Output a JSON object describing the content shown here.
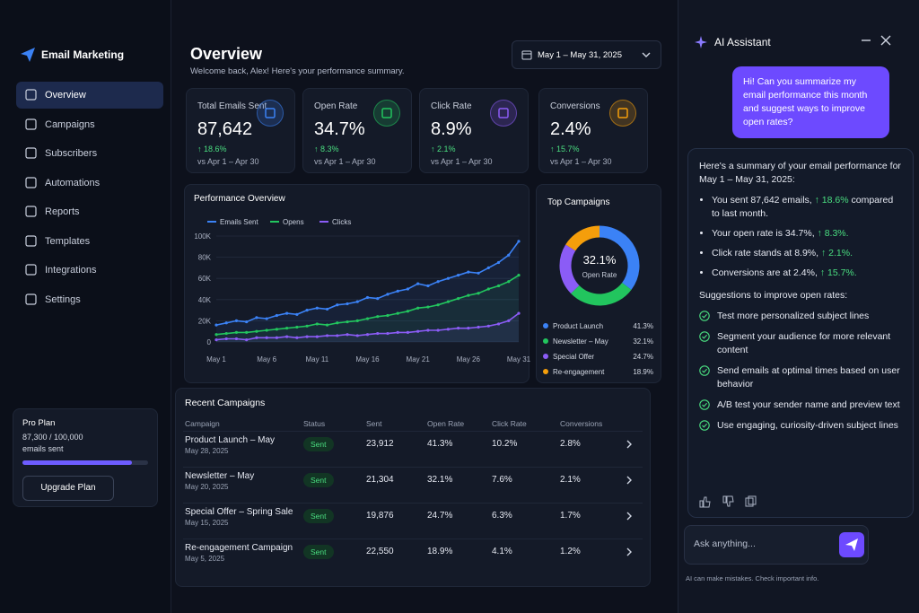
{
  "sidebar": {
    "brand": "Email Marketing",
    "nav": [
      "Overview",
      "Campaigns",
      "Subscribers",
      "Automations",
      "Reports",
      "Templates",
      "Integrations",
      "Settings"
    ],
    "active": 0,
    "plan": {
      "title": "Pro Plan",
      "usage": "87,300 / 100,000",
      "unit": "emails sent",
      "used": 87300,
      "limit": 100000,
      "button": "Upgrade Plan"
    }
  },
  "header": {
    "title": "Overview",
    "subtitle": "Welcome back, Alex! Here's your performance summary.",
    "date_range": "May 1 – May 31, 2025"
  },
  "kpis": [
    {
      "label": "Total Emails Sent",
      "value": "87,642",
      "change": "↑ 18.6%",
      "compare": "vs Apr 1 – Apr 30",
      "color": "#3b82f6"
    },
    {
      "label": "Open Rate",
      "value": "34.7%",
      "change": "↑ 8.3%",
      "compare": "vs Apr 1 – Apr 30",
      "color": "#22c55e"
    },
    {
      "label": "Click Rate",
      "value": "8.9%",
      "change": "↑ 2.1%",
      "compare": "vs Apr 1 – Apr 30",
      "color": "#8b5cf6"
    },
    {
      "label": "Conversions",
      "value": "2.4%",
      "change": "↑ 15.7%",
      "compare": "vs Apr 1 – Apr 30",
      "color": "#f59e0b"
    }
  ],
  "performance_chart": {
    "type": "line",
    "title": "Performance Overview",
    "categories": [
      "May 1",
      null,
      null,
      null,
      null,
      "May 6",
      null,
      null,
      null,
      null,
      "May 11",
      null,
      null,
      null,
      null,
      "May 16",
      null,
      null,
      null,
      null,
      "May 21",
      null,
      null,
      null,
      null,
      "May 26",
      null,
      null,
      null,
      null,
      "May 31"
    ],
    "series": [
      {
        "name": "Emails Sent",
        "color": "#3b82f6",
        "values": [
          16000,
          18000,
          20000,
          19000,
          23000,
          22000,
          25000,
          27000,
          26000,
          30000,
          32000,
          31000,
          35000,
          36000,
          38000,
          42000,
          41000,
          45000,
          48000,
          50000,
          55000,
          53000,
          57000,
          60000,
          63000,
          66000,
          65000,
          70000,
          75000,
          82000,
          95000
        ]
      },
      {
        "name": "Opens",
        "color": "#22c55e",
        "values": [
          7000,
          8000,
          9000,
          9000,
          10000,
          11000,
          12000,
          13000,
          14000,
          15000,
          17000,
          16000,
          18000,
          19000,
          20000,
          22000,
          24000,
          25000,
          27000,
          29000,
          32000,
          33000,
          35000,
          38000,
          41000,
          44000,
          46000,
          50000,
          53000,
          57000,
          63000
        ]
      },
      {
        "name": "Clicks",
        "color": "#8b5cf6",
        "values": [
          2000,
          3000,
          3000,
          2000,
          4000,
          4000,
          4000,
          5000,
          4000,
          5000,
          5000,
          6000,
          6000,
          7000,
          6000,
          7000,
          8000,
          8000,
          9000,
          9000,
          10000,
          11000,
          11000,
          12000,
          13000,
          13000,
          14000,
          15000,
          17000,
          20000,
          27000
        ]
      }
    ],
    "ylim": [
      0,
      100000
    ],
    "yticks": [
      0,
      {
        "value": 20000,
        "label": "20K"
      },
      {
        "value": 40000,
        "label": "40K"
      },
      {
        "value": 60000,
        "label": "60K"
      },
      {
        "value": 80000,
        "label": "80K"
      },
      {
        "value": 100000,
        "label": "100K"
      }
    ],
    "grid": true
  },
  "top_campaigns": {
    "type": "pie",
    "title": "Top Campaigns",
    "center_value": "32.1%",
    "center_label": "Open Rate",
    "categories": [
      "Product Launch",
      "Newsletter – May",
      "Special Offer",
      "Re-engagement"
    ],
    "values": [
      41.3,
      32.1,
      24.7,
      18.9
    ],
    "value_labels": [
      "41.3%",
      "32.1%",
      "24.7%",
      "18.9%"
    ],
    "colors": [
      "#3b82f6",
      "#22c55e",
      "#8b5cf6",
      "#f59e0b"
    ]
  },
  "table": {
    "title": "Recent Campaigns",
    "columns": [
      "Campaign",
      "Status",
      "Sent",
      "Open Rate",
      "Click Rate",
      "Conversions"
    ],
    "rows": [
      {
        "name": "Product Launch – May",
        "date": "May 28, 2025",
        "status": "Sent",
        "sent": "23,912",
        "open_rate": "41.3%",
        "click_rate": "10.2%",
        "conversions": "2.8%"
      },
      {
        "name": "Newsletter – May",
        "date": "May 20, 2025",
        "status": "Sent",
        "sent": "21,304",
        "open_rate": "32.1%",
        "click_rate": "7.6%",
        "conversions": "2.1%"
      },
      {
        "name": "Special Offer – Spring Sale",
        "date": "May 15, 2025",
        "status": "Sent",
        "sent": "19,876",
        "open_rate": "24.7%",
        "click_rate": "6.3%",
        "conversions": "1.7%"
      },
      {
        "name": "Re-engagement Campaign",
        "date": "May 5, 2025",
        "status": "Sent",
        "sent": "22,550",
        "open_rate": "18.9%",
        "click_rate": "4.1%",
        "conversions": "1.2%"
      }
    ]
  },
  "assistant": {
    "title": "AI Assistant",
    "user_message": "Hi! Can you summarize my email performance this month and suggest ways to improve open rates?",
    "intro": "Here's a summary of your email performance for May 1 – May 31, 2025:",
    "summary": [
      {
        "text": "You sent 87,642 emails,",
        "change": "↑ 18.6%",
        "rest": "compared to last month."
      },
      {
        "text": "Your open rate is 34.7%,",
        "change": "↑ 8.3%."
      },
      {
        "text": "Click rate stands at 8.9%,",
        "change": "↑ 2.1%."
      },
      {
        "text": "Conversions are at 2.4%,",
        "change": "↑ 15.7%."
      }
    ],
    "suggestions_title": "Suggestions to improve open rates:",
    "suggestions": [
      "Test more personalized subject lines",
      "Segment your audience for more relevant content",
      "Send emails at optimal times based on user behavior",
      "A/B test your sender name and preview text",
      "Use engaging, curiosity-driven subject lines"
    ],
    "input_placeholder": "Ask anything...",
    "disclaimer": "AI can make mistakes. Check important info."
  }
}
